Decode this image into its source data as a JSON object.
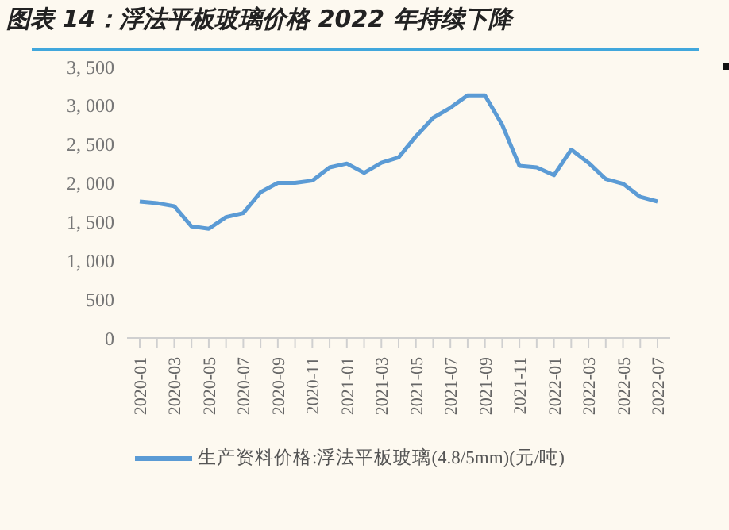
{
  "chart_data": {
    "type": "line",
    "title": "图表 14：浮法平板玻璃价格 2022 年持续下降",
    "categories": [
      "2020-01",
      null,
      "2020-03",
      null,
      "2020-05",
      null,
      "2020-07",
      null,
      "2020-09",
      null,
      "2020-11",
      null,
      "2021-01",
      null,
      "2021-03",
      null,
      "2021-05",
      null,
      "2021-07",
      null,
      "2021-09",
      null,
      "2021-11",
      null,
      "2022-01",
      null,
      "2022-03",
      null,
      "2022-05",
      null,
      "2022-07"
    ],
    "series": [
      {
        "name": "生产资料价格:浮法平板玻璃(4.8/5mm)(元/吨)",
        "color": "#5b9bd5",
        "values": [
          1760,
          1740,
          1700,
          1440,
          1410,
          1560,
          1610,
          1880,
          2000,
          2000,
          2030,
          2200,
          2250,
          2130,
          2260,
          2330,
          2600,
          2840,
          2970,
          3130,
          3130,
          2750,
          2220,
          2200,
          2100,
          2430,
          2260,
          2050,
          1990,
          1820,
          1760
        ]
      }
    ],
    "ylim": [
      0,
      3500
    ],
    "yticks": [
      0,
      500,
      {
        "value": 1000,
        "label": "1, 000"
      },
      {
        "value": 1500,
        "label": "1, 500"
      },
      {
        "value": 2000,
        "label": "2, 000"
      },
      {
        "value": 2500,
        "label": "2, 500"
      },
      {
        "value": 3000,
        "label": "3, 000"
      },
      {
        "value": 3500,
        "label": "3, 500"
      }
    ],
    "grid": false,
    "legend": "bottom",
    "marker": "none",
    "line_style": "solid"
  }
}
